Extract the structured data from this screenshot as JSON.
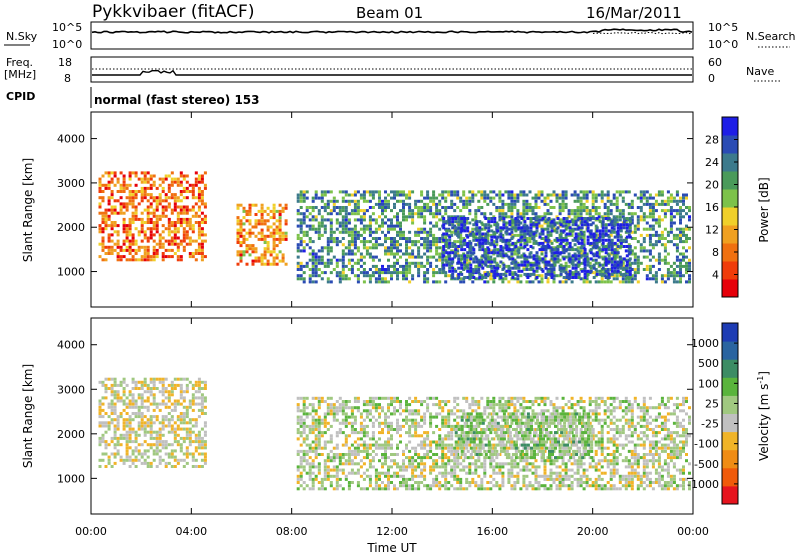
{
  "header": {
    "station": "Pykkvibaer (fitACF)",
    "beam": "Beam 01",
    "date": "16/Mar/2011"
  },
  "noise_panel": {
    "left_label": "N.Sky",
    "left_ticks": [
      "10^5",
      "10^0"
    ],
    "right_label": "N.Search",
    "right_ticks": [
      "10^5",
      "10^0"
    ]
  },
  "freq_panel": {
    "left_label_top": "Freq.",
    "left_label_unit": "[MHz]",
    "left_ticks": [
      "18",
      "8"
    ],
    "right_label": "Nave",
    "right_ticks": [
      "60",
      "0"
    ]
  },
  "cpid_panel": {
    "label": "CPID",
    "value": "normal (fast stereo) 153"
  },
  "colors": {
    "power_scale": [
      "#1e1ee6",
      "#2a4bb4",
      "#3c7a8c",
      "#4a9a5a",
      "#7dc24a",
      "#f0d02a",
      "#f0a020",
      "#f07010",
      "#f03c0a",
      "#e6000a"
    ],
    "velocity_scale": [
      "#1e3cb4",
      "#2a64a0",
      "#3c8c64",
      "#5ab43c",
      "#a0c880",
      "#c0c0c0",
      "#f0b428",
      "#f08c14",
      "#f05a0a",
      "#e6141e"
    ]
  },
  "chart_data": [
    {
      "type": "heatmap",
      "panel": "power",
      "ylabel": "Slant Range [km]",
      "yticks": [
        "4000",
        "3000",
        "2000",
        "1000"
      ],
      "ylim": [
        200,
        4600
      ],
      "xlim": [
        "00:00",
        "24:00"
      ],
      "colorbar": {
        "label": "Power [dB]",
        "ticks": [
          "28",
          "24",
          "20",
          "16",
          "12",
          "8",
          "4"
        ],
        "range": [
          0,
          32
        ]
      },
      "regions": [
        {
          "t_start": 0.3,
          "t_end": 4.6,
          "range_low": 1300,
          "range_high": 3300,
          "value": 8
        },
        {
          "t_start": 5.8,
          "t_end": 7.8,
          "range_low": 1200,
          "range_high": 2600,
          "value": 10
        },
        {
          "t_start": 8.2,
          "t_end": 23.9,
          "range_low": 800,
          "range_high": 2900,
          "value": 22
        },
        {
          "t_start": 14.0,
          "t_end": 21.5,
          "range_low": 900,
          "range_high": 2300,
          "value": 28
        }
      ]
    },
    {
      "type": "heatmap",
      "panel": "velocity",
      "ylabel": "Slant Range [km]",
      "yticks": [
        "4000",
        "3000",
        "2000",
        "1000"
      ],
      "ylim": [
        200,
        4600
      ],
      "xlim": [
        "00:00",
        "24:00"
      ],
      "xticks": [
        "00:00",
        "04:00",
        "08:00",
        "12:00",
        "16:00",
        "20:00",
        "00:00"
      ],
      "xlabel": "Time UT",
      "colorbar": {
        "label": "Velocity [m s^-1]",
        "ticks": [
          "1000",
          "500",
          "100",
          "25",
          "-25",
          "-100",
          "-500",
          "-1000"
        ],
        "range": [
          -1000,
          1000
        ]
      },
      "regions": [
        {
          "t_start": 0.3,
          "t_end": 4.6,
          "range_low": 1300,
          "range_high": 3300,
          "value": -100
        },
        {
          "t_start": 8.2,
          "t_end": 23.9,
          "range_low": 800,
          "range_high": 2900,
          "value": 0
        },
        {
          "t_start": 14.5,
          "t_end": 20.0,
          "range_low": 1500,
          "range_high": 2500,
          "value": 150
        }
      ]
    }
  ]
}
